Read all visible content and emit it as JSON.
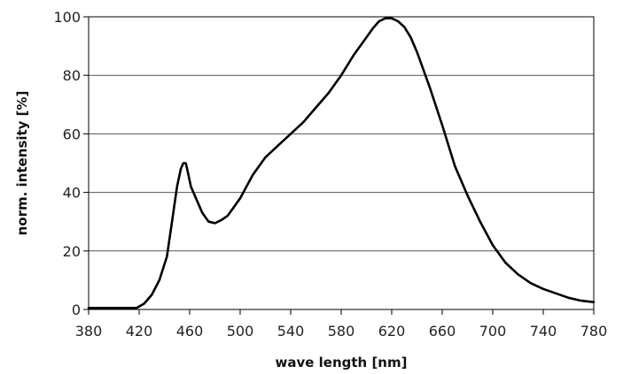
{
  "chart_data": {
    "type": "line",
    "title": "",
    "xlabel": "wave length [nm]",
    "ylabel": "norm. intensity [%]",
    "xlim": [
      380,
      780
    ],
    "ylim": [
      0,
      100
    ],
    "xticks": [
      380,
      420,
      460,
      500,
      540,
      580,
      620,
      660,
      700,
      740,
      780
    ],
    "yticks": [
      0,
      20,
      40,
      60,
      80,
      100
    ],
    "grid": "horizontal",
    "legend": "none",
    "series": [
      {
        "color": "#000000",
        "x": [
          380,
          400,
          410,
          418,
          424,
          430,
          436,
          442,
          446,
          450,
          453,
          455,
          457,
          459,
          461,
          465,
          470,
          475,
          480,
          485,
          490,
          495,
          500,
          510,
          520,
          530,
          540,
          550,
          560,
          570,
          580,
          590,
          600,
          605,
          610,
          615,
          620,
          625,
          630,
          635,
          640,
          650,
          660,
          670,
          680,
          690,
          700,
          710,
          720,
          730,
          740,
          750,
          760,
          770,
          780
        ],
        "y": [
          0.5,
          0.5,
          0.5,
          0.5,
          2,
          5,
          10,
          18,
          30,
          42,
          48,
          50,
          50,
          46,
          42,
          38,
          33,
          30,
          29.5,
          30.5,
          32,
          35,
          38,
          46,
          52,
          56,
          60,
          64,
          69,
          74,
          80,
          87,
          93,
          96,
          98.5,
          99.5,
          99.5,
          98.5,
          96.5,
          93,
          88,
          76,
          63,
          49,
          39,
          30,
          22,
          16,
          12,
          9,
          7,
          5.5,
          4,
          3,
          2.5
        ]
      }
    ]
  }
}
